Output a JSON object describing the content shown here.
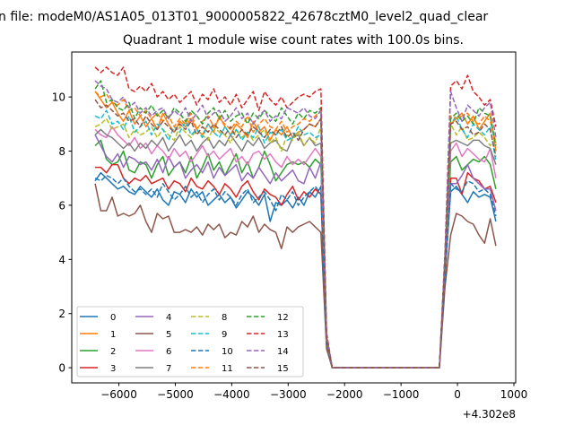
{
  "chart_data": {
    "type": "line",
    "suptitle": "n file: modeM0/AS1A05_013T01_9000005822_42678cztM0_level2_quad_clear",
    "title": "Quadrant 1 module wise count rates with 100.0s bins.",
    "xlabel": "",
    "ylabel": "",
    "x_offset_label": "+4.302e8",
    "x_start": -6420,
    "x_step": 100,
    "xlim": [
      -6835,
      1032
    ],
    "ylim": [
      -0.56,
      11.66
    ],
    "xticks": [
      -6000,
      -5000,
      -4000,
      -3000,
      -2000,
      -1000,
      0,
      1000
    ],
    "xtick_labels": [
      "−6000",
      "−5000",
      "−4000",
      "−3000",
      "−2000",
      "−1000",
      "0",
      "1000"
    ],
    "yticks": [
      0,
      2,
      4,
      6,
      8,
      10
    ],
    "ytick_labels": [
      "0",
      "2",
      "4",
      "6",
      "8",
      "10"
    ],
    "grid": false,
    "legend_position": "lower-left",
    "series": [
      {
        "name": "0",
        "color": "#1f77b4",
        "dashed": false,
        "values": [
          6.9,
          7.2,
          7.0,
          6.8,
          6.6,
          6.7,
          6.5,
          6.4,
          6.7,
          6.5,
          6.3,
          6.6,
          6.2,
          6.0,
          6.5,
          6.4,
          6.1,
          6.6,
          6.3,
          6.5,
          6.0,
          6.2,
          6.4,
          6.1,
          6.3,
          5.9,
          6.2,
          6.5,
          6.3,
          6.0,
          6.4,
          5.4,
          6.1,
          6.0,
          6.2,
          5.9,
          6.3,
          6.0,
          6.5,
          6.3,
          6.7,
          0.9,
          0,
          0,
          0,
          0,
          0,
          0,
          0,
          0,
          0,
          0,
          0,
          0,
          0,
          0,
          0,
          0,
          0,
          0,
          0,
          0,
          3.4,
          6.5,
          6.7,
          6.4,
          6.1,
          6.5,
          6.3,
          6.4,
          6.3,
          5.4
        ]
      },
      {
        "name": "1",
        "color": "#ff7f0e",
        "dashed": false,
        "values": [
          10.2,
          9.9,
          9.6,
          9.8,
          9.4,
          9.1,
          9.5,
          9.0,
          9.3,
          8.9,
          9.2,
          8.8,
          9.4,
          9.0,
          8.7,
          9.1,
          8.9,
          9.2,
          8.8,
          8.6,
          9.0,
          8.7,
          9.3,
          8.9,
          8.6,
          9.0,
          8.8,
          8.5,
          9.1,
          8.7,
          8.9,
          8.4,
          8.8,
          8.6,
          8.9,
          8.5,
          8.7,
          8.8,
          9.0,
          8.9,
          9.2,
          1.0,
          0,
          0,
          0,
          0,
          0,
          0,
          0,
          0,
          0,
          0,
          0,
          0,
          0,
          0,
          0,
          0,
          0,
          0,
          0,
          0,
          3.6,
          9.0,
          9.2,
          9.4,
          9.0,
          9.3,
          8.8,
          9.1,
          9.4,
          8.0
        ]
      },
      {
        "name": "2",
        "color": "#2ca02c",
        "dashed": false,
        "values": [
          8.2,
          8.4,
          7.7,
          7.5,
          7.6,
          8.0,
          7.3,
          7.2,
          7.6,
          7.5,
          7.0,
          7.5,
          7.8,
          7.1,
          7.4,
          7.6,
          7.2,
          7.8,
          7.0,
          7.4,
          7.9,
          7.3,
          7.6,
          7.1,
          7.5,
          7.9,
          7.2,
          7.6,
          7.0,
          7.4,
          8.0,
          7.5,
          6.9,
          7.2,
          7.5,
          7.6,
          7.5,
          7.6,
          7.4,
          7.7,
          7.5,
          0.9,
          0,
          0,
          0,
          0,
          0,
          0,
          0,
          0,
          0,
          0,
          0,
          0,
          0,
          0,
          0,
          0,
          0,
          0,
          0,
          0,
          3.3,
          7.6,
          7.8,
          7.3,
          7.5,
          7.7,
          7.6,
          7.8,
          7.5,
          6.6
        ]
      },
      {
        "name": "3",
        "color": "#d62728",
        "dashed": false,
        "values": [
          7.4,
          7.4,
          7.2,
          7.5,
          7.5,
          7.0,
          6.8,
          7.0,
          6.9,
          7.1,
          6.8,
          6.9,
          7.0,
          6.6,
          6.9,
          6.8,
          6.5,
          7.0,
          6.7,
          6.6,
          6.9,
          6.7,
          6.4,
          6.8,
          6.6,
          6.3,
          6.7,
          6.9,
          6.5,
          6.2,
          6.6,
          6.4,
          6.3,
          6.0,
          6.4,
          6.7,
          6.2,
          6.5,
          6.3,
          6.6,
          6.4,
          0.8,
          0,
          0,
          0,
          0,
          0,
          0,
          0,
          0,
          0,
          0,
          0,
          0,
          0,
          0,
          0,
          0,
          0,
          0,
          0,
          0,
          3.5,
          7.0,
          7.0,
          6.4,
          7.2,
          7.0,
          6.9,
          6.6,
          6.7,
          6.1
        ]
      },
      {
        "name": "4",
        "color": "#9467bd",
        "dashed": false,
        "values": [
          8.6,
          8.2,
          7.8,
          7.6,
          7.9,
          7.4,
          7.8,
          7.7,
          7.5,
          7.6,
          7.3,
          7.7,
          7.2,
          7.8,
          7.4,
          7.6,
          7.0,
          7.3,
          7.5,
          7.2,
          7.6,
          7.0,
          7.4,
          7.1,
          7.3,
          7.5,
          6.9,
          7.2,
          7.0,
          7.4,
          7.1,
          6.8,
          7.2,
          6.9,
          7.1,
          7.3,
          6.9,
          6.8,
          7.4,
          7.0,
          7.6,
          1.0,
          0,
          0,
          0,
          0,
          0,
          0,
          0,
          0,
          0,
          0,
          0,
          0,
          0,
          0,
          0,
          0,
          0,
          0,
          0,
          0,
          3.4,
          6.8,
          6.8,
          7.1,
          7.5,
          7.0,
          6.8,
          6.6,
          6.6,
          5.8
        ]
      },
      {
        "name": "5",
        "color": "#8c564b",
        "dashed": false,
        "values": [
          6.8,
          5.8,
          5.8,
          6.3,
          5.6,
          5.7,
          5.6,
          5.7,
          6.0,
          5.4,
          5.0,
          5.7,
          5.5,
          5.6,
          5.0,
          5.0,
          5.1,
          5.0,
          5.2,
          4.9,
          5.3,
          5.1,
          5.3,
          4.8,
          5.0,
          4.9,
          5.4,
          5.2,
          5.6,
          5.0,
          5.3,
          5.1,
          5.0,
          4.4,
          5.2,
          5.0,
          5.2,
          5.3,
          5.4,
          5.2,
          5.0,
          0.7,
          0,
          0,
          0,
          0,
          0,
          0,
          0,
          0,
          0,
          0,
          0,
          0,
          0,
          0,
          0,
          0,
          0,
          0,
          0,
          0,
          3.0,
          4.9,
          5.7,
          5.6,
          5.4,
          5.3,
          4.9,
          4.6,
          5.5,
          4.5
        ]
      },
      {
        "name": "6",
        "color": "#e377c2",
        "dashed": false,
        "values": [
          8.8,
          8.6,
          8.5,
          8.9,
          8.6,
          8.4,
          8.2,
          8.5,
          8.1,
          8.3,
          7.9,
          8.2,
          8.0,
          7.7,
          8.1,
          7.8,
          8.0,
          7.6,
          7.9,
          8.2,
          7.8,
          8.0,
          7.7,
          7.9,
          8.1,
          7.6,
          7.8,
          7.5,
          7.9,
          8.0,
          7.7,
          7.9,
          7.6,
          7.4,
          7.8,
          7.5,
          7.7,
          7.5,
          7.8,
          8.1,
          7.8,
          1.0,
          0,
          0,
          0,
          0,
          0,
          0,
          0,
          0,
          0,
          0,
          0,
          0,
          0,
          0,
          0,
          0,
          0,
          0,
          0,
          0,
          3.6,
          8.0,
          8.3,
          7.8,
          8.1,
          7.9,
          7.7,
          7.6,
          8.1,
          7.0
        ]
      },
      {
        "name": "7",
        "color": "#7f7f7f",
        "dashed": false,
        "values": [
          8.6,
          8.8,
          8.6,
          8.5,
          8.3,
          8.1,
          8.3,
          8.0,
          8.3,
          8.1,
          8.4,
          8.2,
          8.5,
          8.0,
          8.3,
          8.6,
          8.2,
          8.4,
          8.0,
          8.3,
          8.5,
          8.1,
          8.4,
          8.2,
          8.6,
          8.3,
          8.0,
          8.4,
          8.2,
          8.5,
          8.1,
          8.3,
          8.4,
          8.1,
          8.0,
          8.5,
          8.6,
          8.2,
          8.5,
          8.2,
          8.3,
          1.1,
          0,
          0,
          0,
          0,
          0,
          0,
          0,
          0,
          0,
          0,
          0,
          0,
          0,
          0,
          0,
          0,
          0,
          0,
          0,
          0,
          3.7,
          8.3,
          8.4,
          8.3,
          8.2,
          8.4,
          8.4,
          8.2,
          8.1,
          7.5
        ]
      },
      {
        "name": "8",
        "color": "#bcbd22",
        "dashed": true,
        "values": [
          8.9,
          9.0,
          9.2,
          8.8,
          8.9,
          9.0,
          8.5,
          8.8,
          8.6,
          8.7,
          8.9,
          8.5,
          8.8,
          8.6,
          8.4,
          8.9,
          8.7,
          8.5,
          8.8,
          8.6,
          8.4,
          8.9,
          8.7,
          8.6,
          8.3,
          8.8,
          8.5,
          8.7,
          8.4,
          8.6,
          8.8,
          8.3,
          8.5,
          8.0,
          8.6,
          8.4,
          8.7,
          8.2,
          8.5,
          8.3,
          8.9,
          1.0,
          0,
          0,
          0,
          0,
          0,
          0,
          0,
          0,
          0,
          0,
          0,
          0,
          0,
          0,
          0,
          0,
          0,
          0,
          0,
          0,
          3.8,
          9.0,
          8.6,
          8.9,
          8.4,
          8.5,
          8.7,
          8.5,
          8.2,
          8.5
        ]
      },
      {
        "name": "9",
        "color": "#17becf",
        "dashed": true,
        "values": [
          9.3,
          9.2,
          9.5,
          9.0,
          9.1,
          8.8,
          9.3,
          8.7,
          8.9,
          9.1,
          8.6,
          9.0,
          8.8,
          8.4,
          8.9,
          8.7,
          9.1,
          8.6,
          8.8,
          8.5,
          9.0,
          8.7,
          8.5,
          8.9,
          8.6,
          8.8,
          8.4,
          8.7,
          8.5,
          8.9,
          8.3,
          8.7,
          8.6,
          8.8,
          8.4,
          8.5,
          8.9,
          8.6,
          8.7,
          8.5,
          8.6,
          1.0,
          0,
          0,
          0,
          0,
          0,
          0,
          0,
          0,
          0,
          0,
          0,
          0,
          0,
          0,
          0,
          0,
          0,
          0,
          0,
          0,
          3.9,
          9.0,
          9.3,
          8.8,
          8.5,
          9.0,
          8.8,
          8.6,
          8.9,
          7.6
        ]
      },
      {
        "name": "10",
        "color": "#1f77b4",
        "dashed": true,
        "values": [
          7.0,
          6.9,
          7.1,
          7.0,
          6.8,
          7.0,
          6.7,
          6.5,
          6.6,
          6.4,
          6.6,
          6.3,
          6.8,
          6.5,
          6.2,
          6.4,
          6.7,
          6.3,
          6.5,
          6.1,
          6.4,
          6.6,
          6.2,
          6.5,
          6.3,
          6.0,
          6.4,
          6.6,
          6.1,
          6.3,
          6.5,
          6.2,
          5.8,
          6.4,
          6.2,
          6.5,
          6.0,
          6.3,
          6.5,
          6.7,
          6.4,
          0.9,
          0,
          0,
          0,
          0,
          0,
          0,
          0,
          0,
          0,
          0,
          0,
          0,
          0,
          0,
          0,
          0,
          0,
          0,
          0,
          0,
          3.3,
          6.8,
          6.6,
          6.5,
          6.9,
          6.8,
          6.5,
          6.6,
          6.4,
          5.6
        ]
      },
      {
        "name": "11",
        "color": "#ff7f0e",
        "dashed": true,
        "values": [
          10.2,
          10.0,
          10.1,
          9.8,
          9.7,
          9.9,
          9.5,
          9.6,
          9.3,
          9.5,
          9.2,
          9.4,
          9.1,
          9.3,
          8.9,
          9.2,
          9.0,
          9.4,
          8.8,
          9.1,
          9.3,
          8.9,
          9.2,
          9.0,
          8.8,
          9.1,
          8.9,
          9.3,
          8.7,
          9.0,
          9.2,
          8.9,
          8.8,
          9.1,
          8.7,
          8.9,
          9.0,
          9.2,
          9.1,
          9.3,
          9.5,
          1.1,
          0,
          0,
          0,
          0,
          0,
          0,
          0,
          0,
          0,
          0,
          0,
          0,
          0,
          0,
          0,
          0,
          0,
          0,
          0,
          0,
          4.0,
          9.3,
          9.2,
          9.3,
          9.4,
          9.1,
          9.0,
          9.3,
          9.1,
          8.3
        ]
      },
      {
        "name": "12",
        "color": "#2ca02c",
        "dashed": true,
        "values": [
          10.3,
          10.6,
          9.8,
          9.9,
          9.6,
          9.5,
          9.8,
          9.2,
          9.6,
          9.4,
          9.7,
          9.3,
          9.5,
          9.2,
          9.6,
          9.4,
          9.1,
          9.5,
          9.3,
          9.0,
          9.4,
          9.6,
          9.2,
          9.5,
          9.1,
          9.3,
          9.4,
          9.0,
          9.4,
          9.2,
          9.5,
          9.3,
          9.1,
          9.6,
          9.3,
          9.0,
          9.4,
          9.2,
          9.5,
          9.4,
          9.6,
          1.2,
          0,
          0,
          0,
          0,
          0,
          0,
          0,
          0,
          0,
          0,
          0,
          0,
          0,
          0,
          0,
          0,
          0,
          0,
          0,
          0,
          4.1,
          9.2,
          9.4,
          9.1,
          9.3,
          9.0,
          9.6,
          9.4,
          9.3,
          8.2
        ]
      },
      {
        "name": "13",
        "color": "#d62728",
        "dashed": true,
        "values": [
          11.1,
          10.9,
          11.1,
          10.9,
          10.8,
          11.1,
          10.3,
          10.2,
          10.4,
          10.2,
          10.5,
          10.0,
          10.2,
          9.9,
          10.1,
          9.8,
          10.0,
          10.2,
          9.7,
          10.1,
          9.9,
          10.3,
          9.8,
          10.0,
          9.7,
          10.1,
          9.6,
          9.9,
          10.2,
          9.5,
          10.2,
          9.9,
          9.7,
          10.0,
          9.6,
          9.8,
          10.0,
          10.1,
          10.0,
          10.2,
          10.3,
          1.3,
          0,
          0,
          0,
          0,
          0,
          0,
          0,
          0,
          0,
          0,
          0,
          0,
          0,
          0,
          0,
          0,
          0,
          0,
          0,
          0,
          4.3,
          10.4,
          10.6,
          10.3,
          10.8,
          10.2,
          10.0,
          9.7,
          9.9,
          8.9
        ]
      },
      {
        "name": "14",
        "color": "#9467bd",
        "dashed": true,
        "values": [
          10.6,
          10.4,
          10.3,
          9.9,
          9.8,
          10.0,
          9.6,
          9.8,
          9.4,
          9.6,
          9.3,
          9.5,
          9.6,
          9.2,
          9.5,
          9.3,
          9.6,
          9.1,
          9.4,
          9.7,
          9.2,
          9.4,
          9.5,
          9.1,
          9.3,
          9.6,
          9.2,
          9.4,
          9.0,
          9.3,
          9.5,
          9.1,
          9.3,
          9.2,
          9.6,
          9.5,
          9.4,
          9.6,
          9.3,
          9.2,
          9.5,
          1.2,
          0,
          0,
          0,
          0,
          0,
          0,
          0,
          0,
          0,
          0,
          0,
          0,
          0,
          0,
          0,
          0,
          0,
          0,
          0,
          0,
          4.2,
          10.2,
          9.6,
          9.1,
          9.7,
          9.5,
          9.3,
          9.6,
          9.8,
          8.5
        ]
      },
      {
        "name": "15",
        "color": "#8c564b",
        "dashed": true,
        "values": [
          9.9,
          9.6,
          9.7,
          9.5,
          9.3,
          9.4,
          9.1,
          9.2,
          8.9,
          9.3,
          9.0,
          8.8,
          9.1,
          8.9,
          8.7,
          9.0,
          8.8,
          9.1,
          8.6,
          8.9,
          8.7,
          9.0,
          8.8,
          8.6,
          8.9,
          8.5,
          8.8,
          8.6,
          8.9,
          8.7,
          8.5,
          8.8,
          8.6,
          8.9,
          8.5,
          8.7,
          8.4,
          8.8,
          9.0,
          8.9,
          9.2,
          1.1,
          0,
          0,
          0,
          0,
          0,
          0,
          0,
          0,
          0,
          0,
          0,
          0,
          0,
          0,
          0,
          0,
          0,
          0,
          0,
          0,
          3.9,
          9.0,
          9.1,
          8.8,
          8.9,
          8.6,
          8.7,
          9.0,
          8.8,
          7.8
        ]
      }
    ]
  }
}
